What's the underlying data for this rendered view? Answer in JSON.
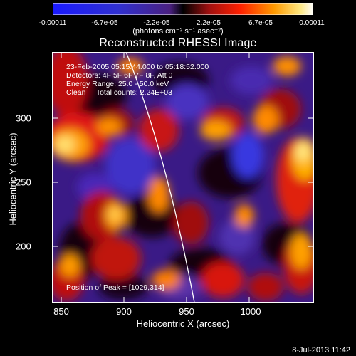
{
  "colorbar": {
    "ticks": [
      "-0.00011",
      "-6.7e-05",
      "-2.2e-05",
      "2.2e-05",
      "6.7e-05",
      "0.00011"
    ],
    "units": "(photons cm⁻² s⁻¹ asec⁻²)"
  },
  "title": "Reconstructed RHESSI Image",
  "info": {
    "time_range": "23-Feb-2005 05:15:44.000 to 05:18:52.000",
    "detectors": "Detectors: 4F 5F 6F 7F 8F, Att 0",
    "energy": "Energy Range: 25.0 - 50.0 keV",
    "method": "Clean     Total counts: 2.24E+03",
    "peak": "Position of Peak = [1029,314]"
  },
  "axes": {
    "xlabel": "Heliocentric X (arcsec)",
    "ylabel": "Heliocentric Y (arcsec)",
    "xticks": [
      "850",
      "900",
      "950",
      "1000"
    ],
    "yticks": [
      "300",
      "250",
      "200"
    ]
  },
  "footer": "8-Jul-2013 11:42"
}
